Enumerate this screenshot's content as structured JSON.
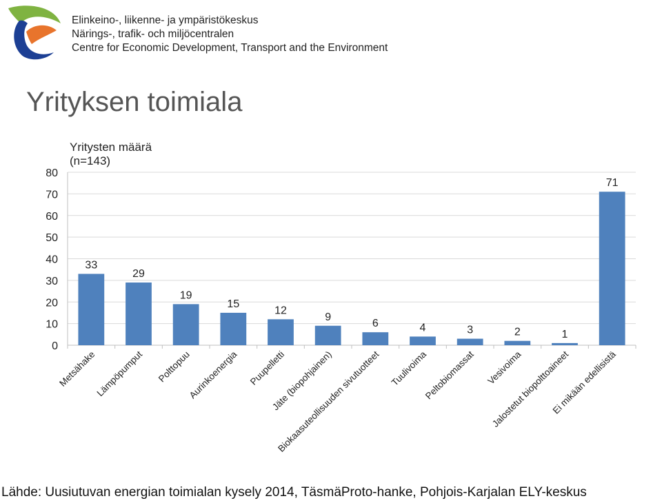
{
  "header": {
    "org_names": [
      "Elinkeino-, liikenne- ja ympäristökeskus",
      "Närings-, trafik- och miljöcentralen",
      "Centre for Economic Development, Transport and the Environment"
    ],
    "logo": {
      "icon": "ely-logo-icon",
      "colors": [
        "#1c3f94",
        "#e8742c",
        "#7fb341"
      ]
    }
  },
  "title": "Yrityksen toimiala",
  "chart_data": {
    "type": "bar",
    "title": "Yritysten määrä (n=143)",
    "title_lines": [
      "Yritysten määrä",
      "(n=143)"
    ],
    "categories": [
      "Metsähake",
      "Lämpöpumput",
      "Polttopuu",
      "Aurinkoenergia",
      "Puupelletti",
      "Jäte (biopohjainen)",
      "Biokaasuteollisuuden sivutuotteet",
      "Tuulivoima",
      "Peltobiomassat",
      "Vesivoima",
      "Jalostetut biopolttoaineet",
      "Ei mikään edellisistä"
    ],
    "values": [
      33,
      29,
      19,
      15,
      12,
      9,
      6,
      4,
      3,
      2,
      1,
      71
    ],
    "data_labels": [
      "33",
      "29",
      "19",
      "15",
      "12",
      "9",
      "6",
      "4",
      "3",
      "2",
      "1",
      "71"
    ],
    "ylim": [
      0,
      80
    ],
    "yticks": [
      0,
      10,
      20,
      30,
      40,
      50,
      60,
      70,
      80
    ],
    "ytick_labels": [
      "0",
      "10",
      "20",
      "30",
      "40",
      "50",
      "60",
      "70",
      "80"
    ],
    "grid": true,
    "legend": "none",
    "bar_color": "#4f81bd"
  },
  "source": "Lähde: Uusiutuvan energian toimialan kysely 2014, TäsmäProto-hanke, Pohjois-Karjalan ELY-keskus"
}
